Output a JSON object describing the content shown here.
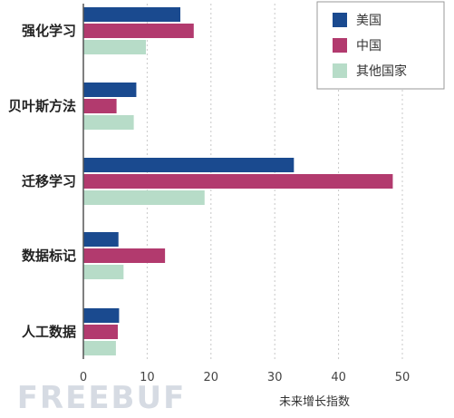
{
  "chart_data": {
    "type": "bar",
    "orientation": "horizontal",
    "categories": [
      "强化学习",
      "贝叶斯方法",
      "迁移学习",
      "数据标记",
      "人工数据"
    ],
    "series": [
      {
        "name": "美国",
        "color": "#1a4a8f",
        "values": [
          15.2,
          8.3,
          33.0,
          5.5,
          5.6
        ]
      },
      {
        "name": "中国",
        "color": "#b23a6e",
        "values": [
          17.3,
          5.2,
          48.5,
          12.8,
          5.4
        ]
      },
      {
        "name": "其他国家",
        "color": "#b7dcc8",
        "values": [
          9.8,
          7.9,
          19.0,
          6.3,
          5.1
        ]
      }
    ],
    "xlabel": "未来增长指数",
    "ylabel": "",
    "xlim": [
      0,
      50
    ],
    "xticks": [
      0,
      10,
      20,
      30,
      40,
      50
    ],
    "grid": "vertical dotted",
    "legend_position": "top-right"
  },
  "watermark": "FREEBUF"
}
